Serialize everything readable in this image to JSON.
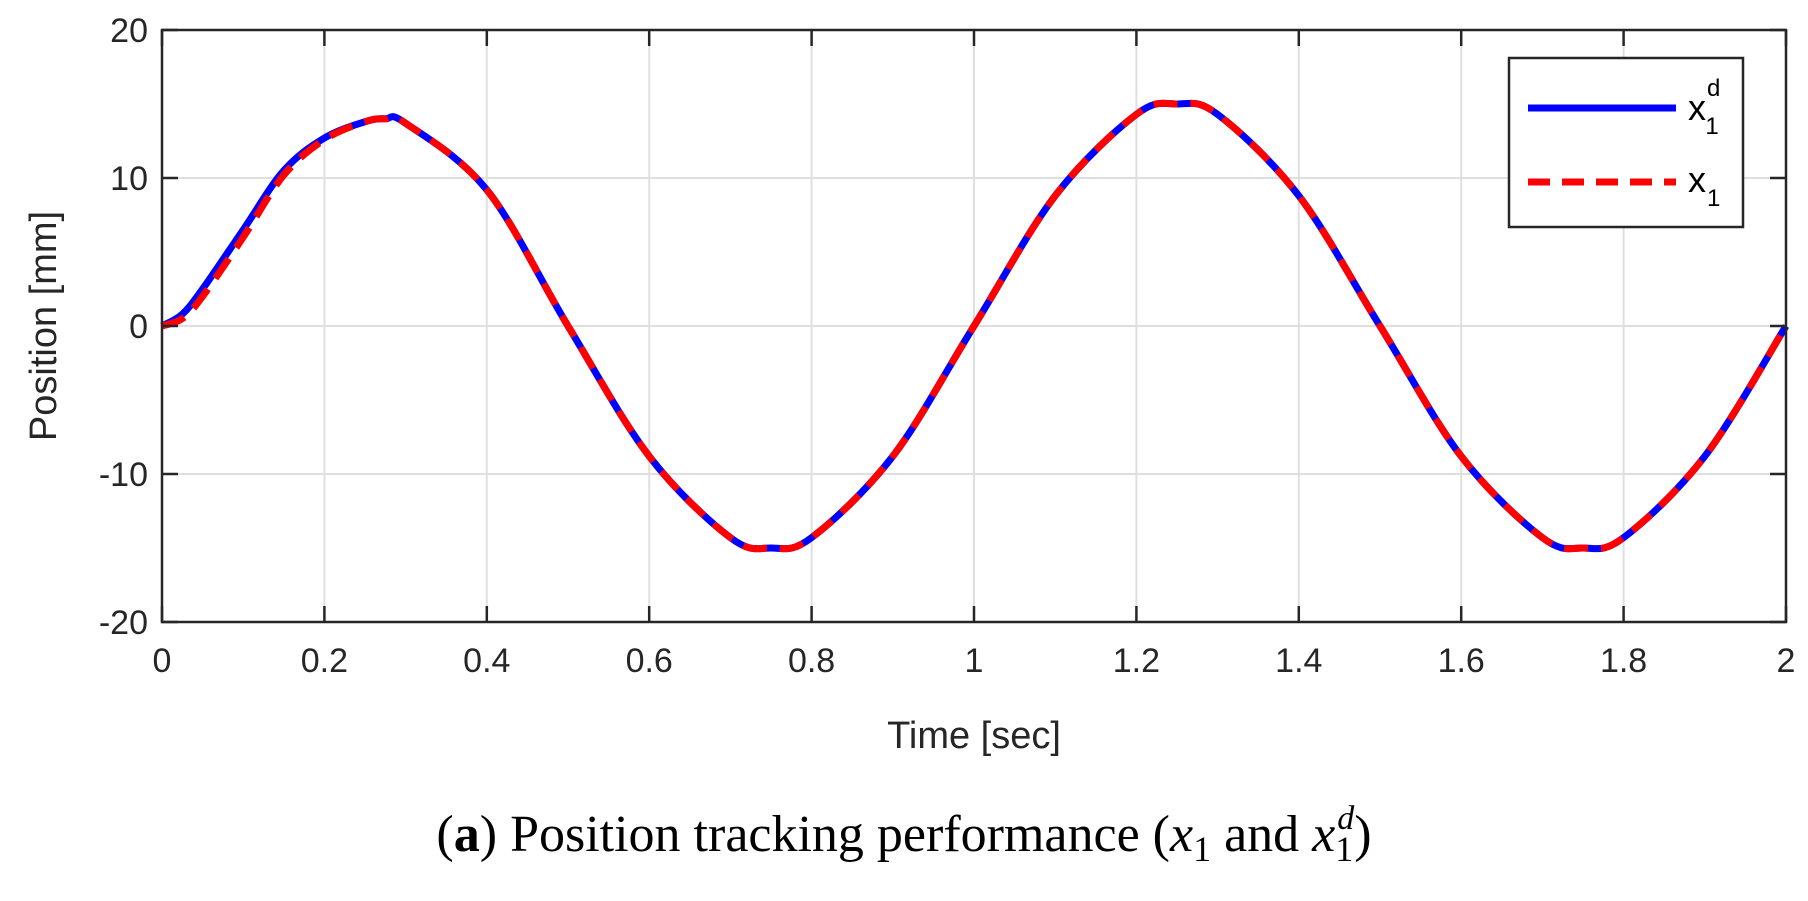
{
  "chart_data": {
    "type": "line",
    "xlabel": "Time [sec]",
    "ylabel": "Position [mm]",
    "xlim": [
      0,
      2
    ],
    "ylim": [
      -20,
      20
    ],
    "xticks": [
      0,
      0.2,
      0.4,
      0.6,
      0.8,
      1,
      1.2,
      1.4,
      1.6,
      1.8,
      2
    ],
    "xtick_labels": [
      "0",
      "0.2",
      "0.4",
      "0.6",
      "0.8",
      "1",
      "1.2",
      "1.4",
      "1.6",
      "1.8",
      "2"
    ],
    "yticks": [
      -20,
      -10,
      0,
      10,
      20
    ],
    "ytick_labels": [
      "-20",
      "-10",
      "0",
      "10",
      "20"
    ],
    "grid": true,
    "legend_position": "top-right",
    "series": [
      {
        "name": "x1d",
        "legend_base": "x",
        "legend_sub": "1",
        "legend_sup": "d",
        "color": "#0000ff",
        "style": "solid",
        "x": [
          0,
          0.025,
          0.05,
          0.1,
          0.15,
          0.2,
          0.25,
          0.275,
          0.3,
          0.4,
          0.5,
          0.6,
          0.7,
          0.75,
          0.8,
          0.9,
          1.0,
          1.1,
          1.2,
          1.25,
          1.3,
          1.4,
          1.5,
          1.6,
          1.7,
          1.75,
          1.8,
          1.9,
          2.0
        ],
        "y": [
          0,
          0.8,
          2.5,
          6.5,
          10.5,
          12.7,
          13.8,
          14.0,
          13.7,
          9.2,
          0,
          -8.8,
          -14.3,
          -15,
          -14.3,
          -8.8,
          0,
          8.8,
          14.3,
          15,
          14.3,
          8.8,
          0,
          -8.8,
          -14.3,
          -15,
          -14.3,
          -8.8,
          0
        ]
      },
      {
        "name": "x1",
        "legend_base": "x",
        "legend_sub": "1",
        "legend_sup": "",
        "color": "#ff0000",
        "style": "dashed",
        "x": [
          0,
          0.025,
          0.05,
          0.1,
          0.15,
          0.2,
          0.25,
          0.275,
          0.3,
          0.4,
          0.5,
          0.6,
          0.7,
          0.75,
          0.8,
          0.9,
          1.0,
          1.1,
          1.2,
          1.25,
          1.3,
          1.4,
          1.5,
          1.6,
          1.7,
          1.75,
          1.8,
          1.9,
          2.0
        ],
        "y": [
          0,
          0.5,
          2.0,
          6.0,
          10.2,
          12.6,
          13.8,
          14.0,
          13.7,
          9.2,
          0,
          -8.8,
          -14.3,
          -15,
          -14.3,
          -8.8,
          0,
          8.8,
          14.3,
          15,
          14.3,
          8.8,
          0,
          -8.8,
          -14.3,
          -15,
          -14.3,
          -8.8,
          0
        ]
      }
    ]
  },
  "caption": {
    "label": "a",
    "open_paren": "(",
    "close_paren": ")",
    "text": " Position tracking performance (",
    "var1_base": "x",
    "var1_sub": "1",
    "and_text": " and ",
    "var2_base": "x",
    "var2_sub": "1",
    "var2_sup": "d",
    "end_text": ")"
  }
}
